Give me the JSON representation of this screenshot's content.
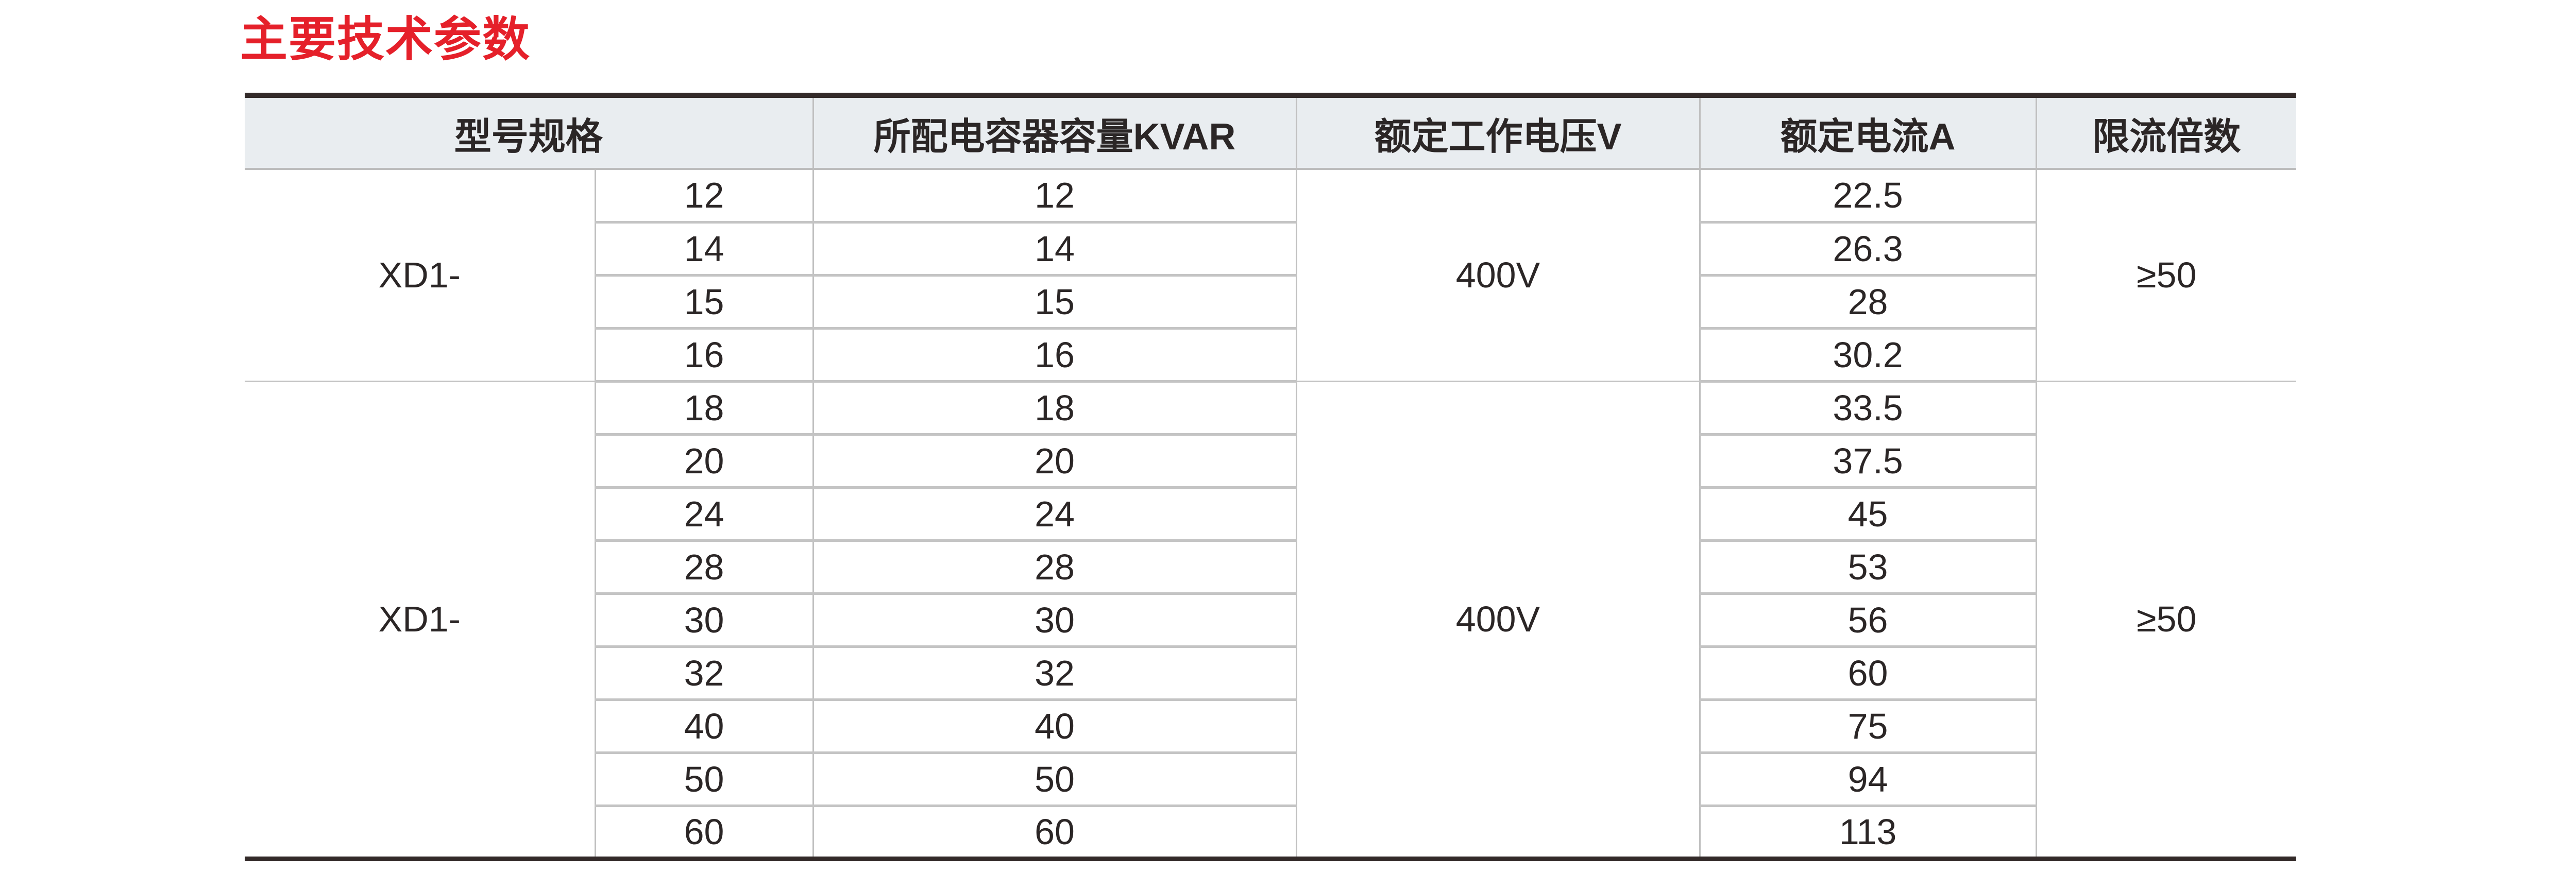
{
  "title": "主要技术参数",
  "table": {
    "headers": [
      "型号规格",
      "所配电容器容量KVAR",
      "额定工作电压V",
      "额定电流A",
      "限流倍数"
    ],
    "groups": [
      {
        "model": "XD1-",
        "voltage": "400V",
        "ratio": "≥50",
        "rows": [
          {
            "spec": "12",
            "capacity": "12",
            "current": "22.5"
          },
          {
            "spec": "14",
            "capacity": "14",
            "current": "26.3"
          },
          {
            "spec": "15",
            "capacity": "15",
            "current": "28"
          },
          {
            "spec": "16",
            "capacity": "16",
            "current": "30.2"
          }
        ]
      },
      {
        "model": "XD1-",
        "voltage": "400V",
        "ratio": "≥50",
        "rows": [
          {
            "spec": "18",
            "capacity": "18",
            "current": "33.5"
          },
          {
            "spec": "20",
            "capacity": "20",
            "current": "37.5"
          },
          {
            "spec": "24",
            "capacity": "24",
            "current": "45"
          },
          {
            "spec": "28",
            "capacity": "28",
            "current": "53"
          },
          {
            "spec": "30",
            "capacity": "30",
            "current": "56"
          },
          {
            "spec": "32",
            "capacity": "32",
            "current": "60"
          },
          {
            "spec": "40",
            "capacity": "40",
            "current": "75"
          },
          {
            "spec": "50",
            "capacity": "50",
            "current": "94"
          },
          {
            "spec": "60",
            "capacity": "60",
            "current": "113"
          }
        ]
      }
    ]
  },
  "colors": {
    "title": "#e5202a",
    "header_bg": "#e9edf0",
    "rule": "#332a29",
    "grid": "#c0c0c0"
  }
}
